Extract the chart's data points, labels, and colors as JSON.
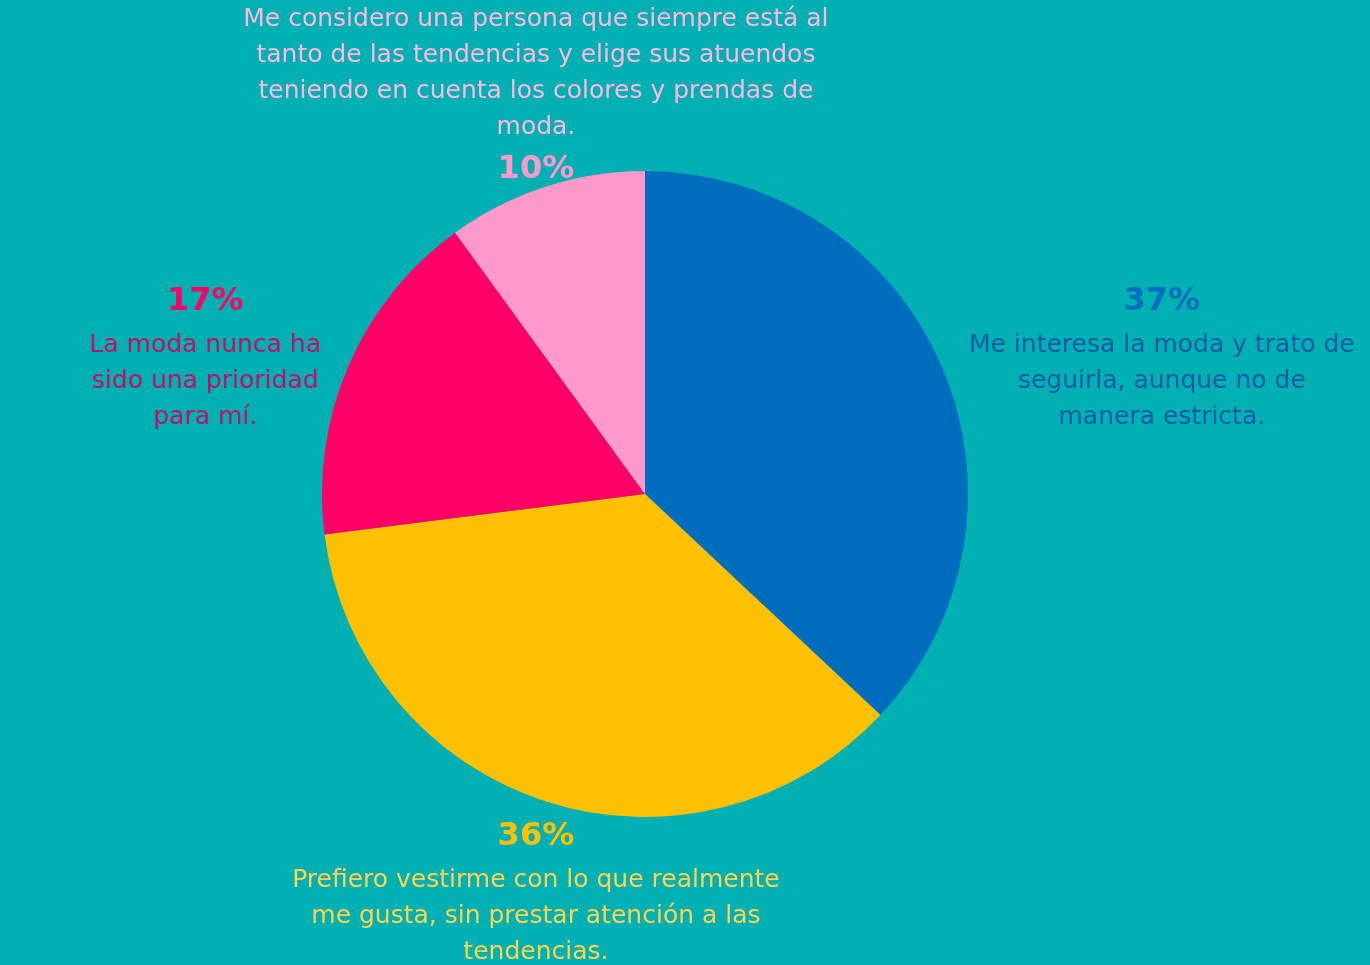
{
  "chart_data": {
    "type": "pie",
    "categories": [
      "Me interesa la moda y trato de seguirla, aunque no de manera estricta.",
      "Prefiero vestirme con lo que realmente me gusta, sin prestar atención a las tendencias.",
      "La moda nunca ha sido una prioridad para mí.",
      "Me considero una persona que siempre está al tanto de las tendencias y elige sus atuendos teniendo en cuenta los colores y prendas de moda."
    ],
    "values": [
      37,
      36,
      17,
      10
    ],
    "colors": [
      "#006ebf",
      "#ffc000",
      "#ff0066",
      "#ff99cc"
    ],
    "value_labels": [
      "37%",
      "36%",
      "17%",
      "10%"
    ]
  }
}
